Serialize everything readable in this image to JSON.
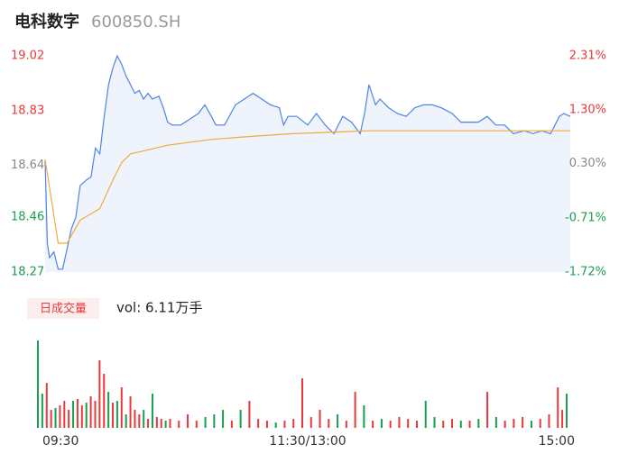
{
  "chart_data": [
    {
      "type": "line",
      "title": "电科数字",
      "subtitle": "600850.SH",
      "xlim": [
        0,
        240
      ],
      "ylim": [
        18.27,
        19.02
      ],
      "y2lim": [
        -1.72,
        2.31
      ],
      "xticks": [
        {
          "value": 0,
          "label": "09:30"
        },
        {
          "value": 120,
          "label": "11:30/13:00"
        },
        {
          "value": 240,
          "label": "15:00"
        }
      ],
      "yticks": [
        18.27,
        18.46,
        18.64,
        18.83,
        19.02
      ],
      "y2ticks": [
        {
          "value": -1.72,
          "label": "-1.72%"
        },
        {
          "value": -0.71,
          "label": "-0.71%"
        },
        {
          "value": 0.3,
          "label": "0.30%"
        },
        {
          "value": 1.3,
          "label": "1.30%"
        },
        {
          "value": 2.31,
          "label": "2.31%"
        }
      ],
      "tick_colors": {
        "up": "#e8393c",
        "flat": "#888888",
        "down": "#1a9e52"
      },
      "series": [
        {
          "color": "#4d84e6",
          "fill": "#eef3fc",
          "x": [
            0,
            1,
            2,
            4,
            6,
            8,
            10,
            12,
            14,
            16,
            19,
            21,
            23,
            25,
            27,
            29,
            31,
            33,
            35,
            37,
            39,
            41,
            43,
            45,
            47,
            49,
            52,
            54,
            56,
            58,
            60,
            62,
            66,
            70,
            73,
            76,
            78,
            82,
            87,
            91,
            95,
            99,
            103,
            107,
            109,
            111,
            115,
            120,
            124,
            128,
            132,
            136,
            140,
            144,
            146,
            148,
            151,
            153,
            157,
            161,
            165,
            169,
            173,
            177,
            181,
            186,
            190,
            194,
            198,
            202,
            206,
            210,
            214,
            219,
            223,
            227,
            231,
            235,
            237,
            240
          ],
          "values": [
            18.66,
            18.37,
            18.32,
            18.34,
            18.28,
            18.28,
            18.35,
            18.42,
            18.46,
            18.57,
            18.59,
            18.6,
            18.7,
            18.68,
            18.81,
            18.92,
            18.98,
            19.02,
            18.99,
            18.95,
            18.92,
            18.89,
            18.9,
            18.87,
            18.89,
            18.87,
            18.88,
            18.84,
            18.79,
            18.78,
            18.78,
            18.78,
            18.8,
            18.82,
            18.85,
            18.81,
            18.78,
            18.78,
            18.85,
            18.87,
            18.89,
            18.87,
            18.85,
            18.84,
            18.78,
            18.81,
            18.81,
            18.78,
            18.82,
            18.78,
            18.75,
            18.81,
            18.79,
            18.75,
            18.82,
            18.92,
            18.85,
            18.87,
            18.84,
            18.82,
            18.81,
            18.84,
            18.85,
            18.85,
            18.84,
            18.82,
            18.79,
            18.79,
            18.79,
            18.81,
            18.78,
            18.78,
            18.75,
            18.76,
            18.75,
            18.76,
            18.75,
            18.81,
            18.82,
            18.81
          ]
        },
        {
          "color": "#f2a93b",
          "x": [
            0,
            6,
            10,
            16,
            25,
            31,
            35,
            39,
            45,
            56,
            76,
            93,
            113,
            148,
            183,
            240
          ],
          "values": [
            18.66,
            18.37,
            18.37,
            18.45,
            18.49,
            18.59,
            18.65,
            18.68,
            18.69,
            18.71,
            18.73,
            18.74,
            18.75,
            18.76,
            18.76,
            18.76
          ]
        }
      ]
    },
    {
      "type": "bar",
      "title": "日成交量",
      "annotation": "vol: 6.11万手",
      "xlim": [
        0,
        240
      ],
      "ylim": [
        0,
        100
      ],
      "colors": {
        "up": "#e8393c",
        "down": "#1a9e52"
      },
      "x": [
        0,
        2,
        4,
        6,
        8,
        10,
        12,
        14,
        16,
        18,
        20,
        22,
        24,
        26,
        28,
        30,
        32,
        34,
        36,
        38,
        40,
        42,
        44,
        46,
        48,
        50,
        52,
        54,
        56,
        58,
        60,
        64,
        68,
        72,
        76,
        80,
        84,
        88,
        92,
        96,
        100,
        104,
        108,
        112,
        116,
        120,
        124,
        128,
        132,
        136,
        140,
        144,
        148,
        152,
        156,
        160,
        164,
        168,
        172,
        176,
        180,
        184,
        188,
        192,
        196,
        200,
        204,
        208,
        212,
        216,
        220,
        224,
        228,
        232,
        236,
        238,
        240
      ],
      "values": [
        97,
        38,
        50,
        20,
        22,
        25,
        30,
        20,
        30,
        32,
        25,
        28,
        35,
        30,
        75,
        60,
        40,
        28,
        30,
        45,
        15,
        35,
        20,
        15,
        20,
        10,
        38,
        12,
        10,
        8,
        10,
        8,
        15,
        8,
        12,
        15,
        20,
        8,
        20,
        30,
        10,
        8,
        6,
        8,
        10,
        55,
        12,
        20,
        10,
        15,
        8,
        40,
        25,
        8,
        10,
        8,
        12,
        10,
        8,
        30,
        12,
        8,
        10,
        8,
        8,
        10,
        40,
        12,
        8,
        10,
        12,
        8,
        10,
        15,
        45,
        20,
        38
      ],
      "direction": [
        "down",
        "down",
        "up",
        "up",
        "down",
        "up",
        "up",
        "up",
        "down",
        "up",
        "up",
        "down",
        "up",
        "up",
        "up",
        "up",
        "down",
        "up",
        "down",
        "up",
        "down",
        "up",
        "up",
        "up",
        "down",
        "up",
        "down",
        "up",
        "up",
        "down",
        "up",
        "up",
        "up",
        "up",
        "down",
        "down",
        "down",
        "up",
        "down",
        "up",
        "up",
        "up",
        "down",
        "up",
        "up",
        "up",
        "up",
        "up",
        "up",
        "down",
        "up",
        "up",
        "down",
        "up",
        "down",
        "up",
        "up",
        "up",
        "up",
        "down",
        "down",
        "up",
        "up",
        "down",
        "up",
        "down",
        "up",
        "down",
        "up",
        "up",
        "up",
        "down",
        "up",
        "up",
        "up",
        "up",
        "down"
      ]
    }
  ]
}
